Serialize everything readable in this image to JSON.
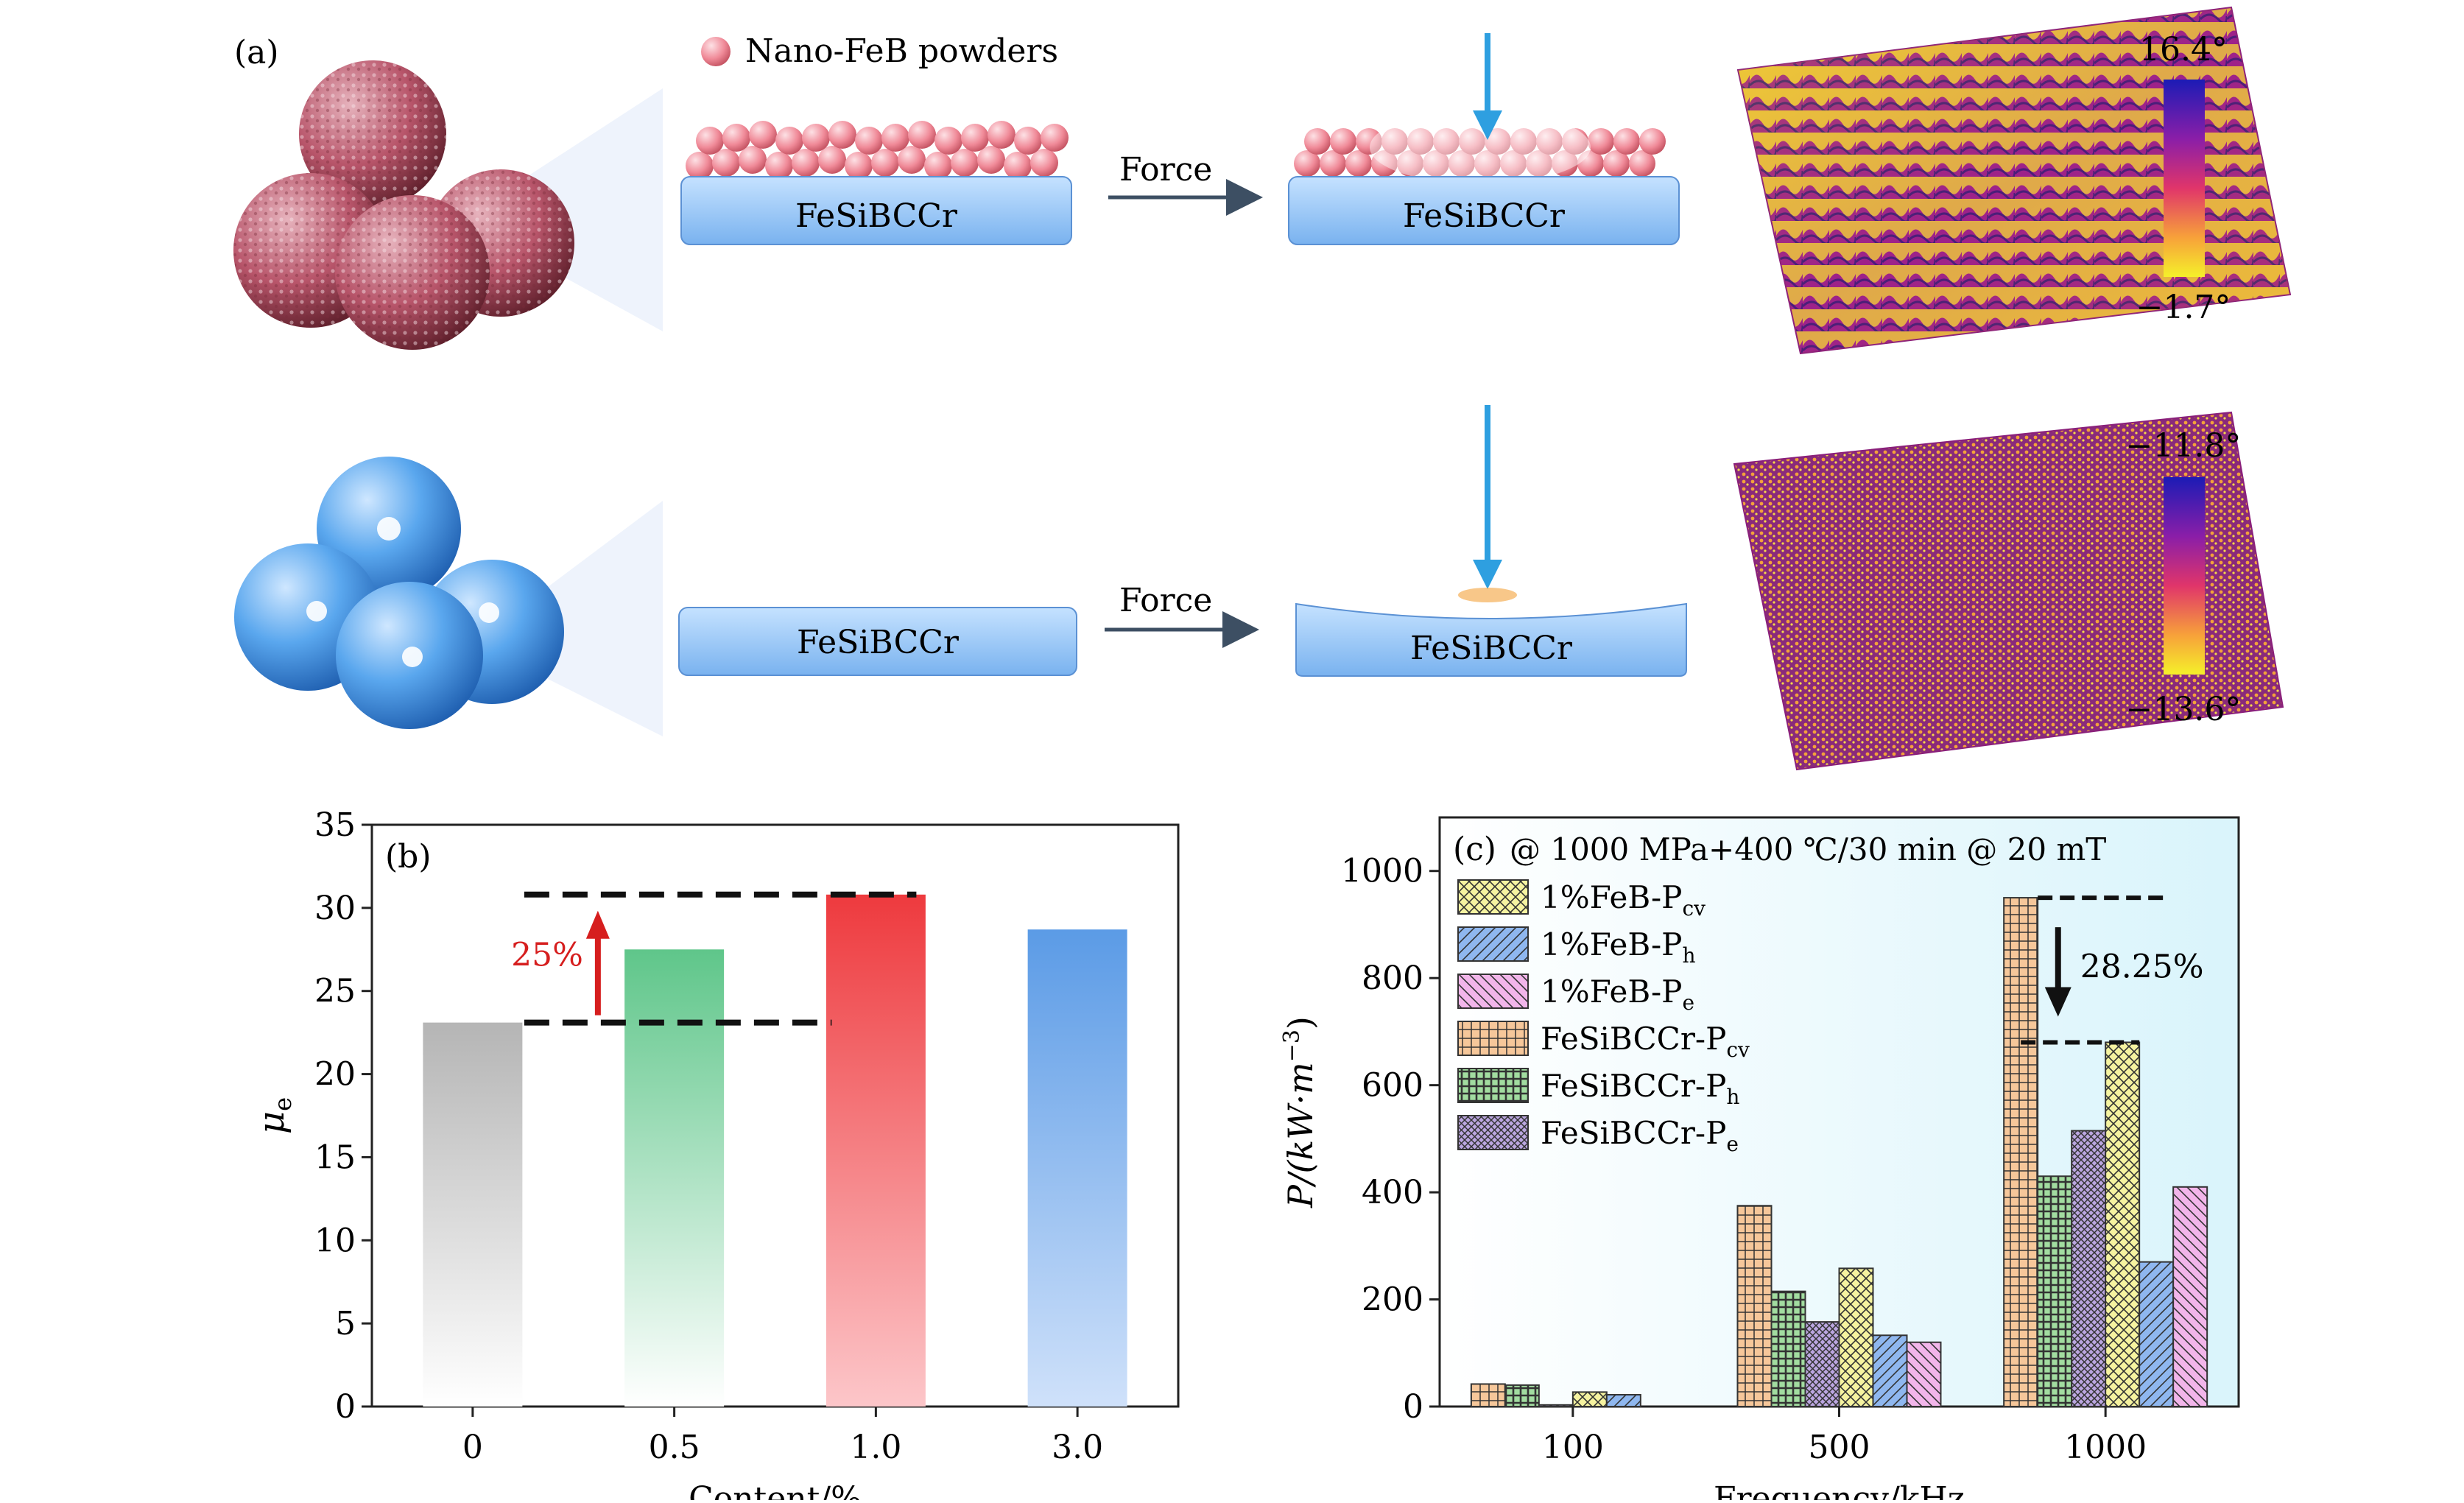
{
  "panel_a": {
    "label": "(a)",
    "legend_label": "Nano-FeB powders",
    "substrate_label": "FeSiBCCr",
    "force_label": "Force",
    "colorbar_top": {
      "max": "16.4°",
      "min": "−1.7°"
    },
    "colorbar_bottom": {
      "max": "−11.8°",
      "min": "−13.6°"
    },
    "colors": {
      "sphere_pink": "#b8556a",
      "sphere_blue": "#5aa7ee",
      "substrate": "#8ec3f5",
      "nano": "#f08a98",
      "arrow": "#2e9fe0"
    }
  },
  "chart_data": [
    {
      "type": "bar",
      "panel_label": "(b)",
      "categories": [
        "0",
        "0.5",
        "1.0",
        "3.0"
      ],
      "values": [
        23.1,
        27.5,
        30.8,
        28.7
      ],
      "xlabel": "Content/%",
      "ylabel": "μ",
      "ylabel_sub": "e",
      "ylim": [
        0,
        35
      ],
      "yticks": [
        "0",
        "5",
        "10",
        "15",
        "20",
        "25",
        "30",
        "35"
      ],
      "annotation": "25%",
      "bar_colors": [
        "#b5b5b5",
        "#5fc68a",
        "#ee3a3e",
        "#5b9be6"
      ],
      "annotation_color": "#d61e1e"
    },
    {
      "type": "bar",
      "panel_label": "(c)",
      "title": "@ 1000 MPa+400 ℃/30 min @ 20 mT",
      "categories": [
        "100",
        "500",
        "1000"
      ],
      "xlabel": "Frequency/kHz",
      "ylabel": "P/(kW·m",
      "ylabel_sup": "−3",
      "ylim": [
        0,
        1100
      ],
      "yticks": [
        "0",
        "200",
        "400",
        "600",
        "800",
        "1000"
      ],
      "annotation": "28.25%",
      "series_order_drawn": [
        "FeSiBCCr-Pcv",
        "FeSiBCCr-Ph",
        "FeSiBCCr-Pe",
        "1%FeB-Pcv",
        "1%FeB-Ph",
        "1%FeB-Pe"
      ],
      "series": [
        {
          "name": "1%FeB-P",
          "sub": "cv",
          "key": "1%FeB-Pcv",
          "values": [
            27,
            258,
            680
          ],
          "color": "#f6f3a0"
        },
        {
          "name": "1%FeB-P",
          "sub": "h",
          "key": "1%FeB-Ph",
          "values": [
            22,
            133,
            270
          ],
          "color": "#8fb7ef"
        },
        {
          "name": "1%FeB-P",
          "sub": "e",
          "key": "1%FeB-Pe",
          "values": [
            0,
            120,
            410
          ],
          "color": "#f2b5ea"
        },
        {
          "name": "FeSiBCCr-P",
          "sub": "cv",
          "key": "FeSiBCCr-Pcv",
          "values": [
            42,
            375,
            950
          ],
          "color": "#f6c79a"
        },
        {
          "name": "FeSiBCCr-P",
          "sub": "h",
          "key": "FeSiBCCr-Ph",
          "values": [
            40,
            215,
            430
          ],
          "color": "#a2dca0"
        },
        {
          "name": "FeSiBCCr-P",
          "sub": "e",
          "key": "FeSiBCCr-Pe",
          "values": [
            3,
            158,
            515
          ],
          "color": "#bba6e0"
        }
      ]
    }
  ]
}
